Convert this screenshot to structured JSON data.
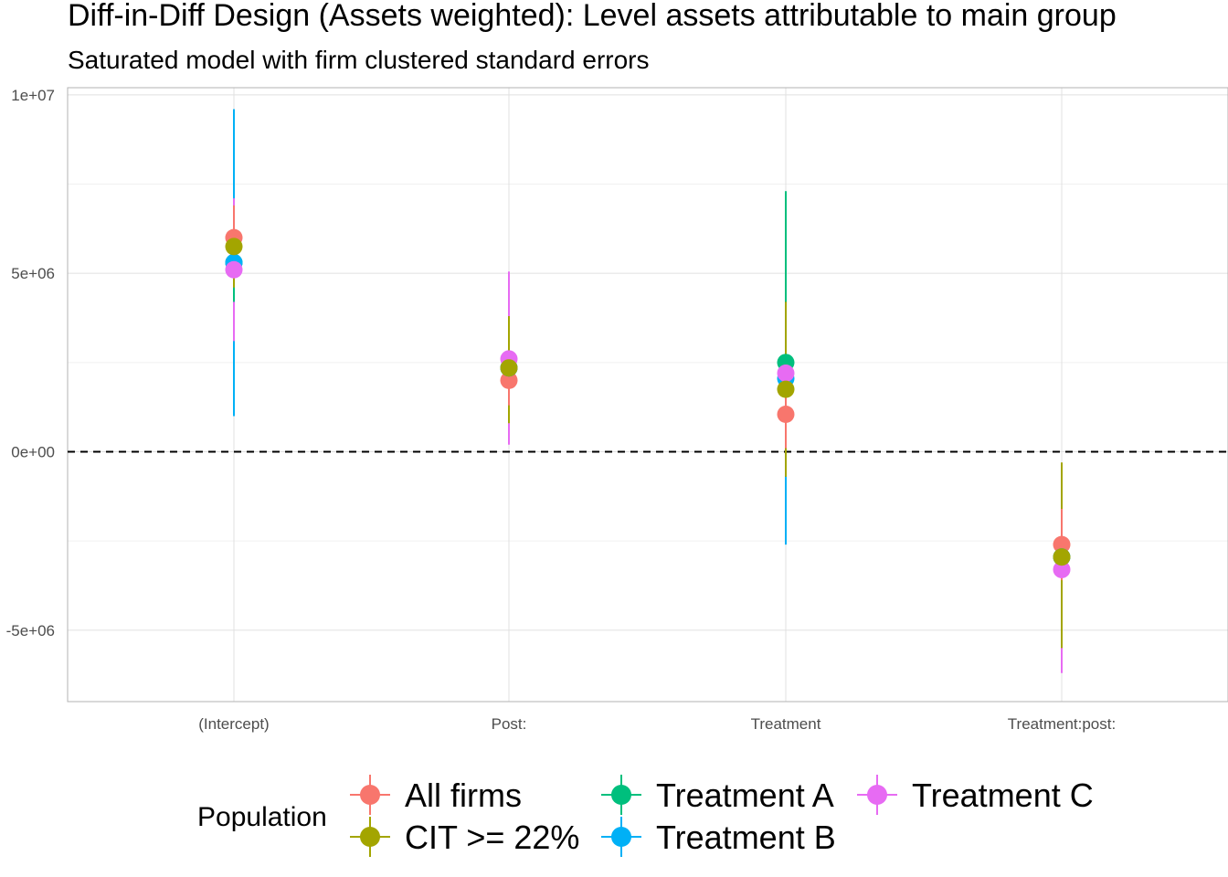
{
  "chart_data": {
    "type": "scatter",
    "title": "Diff-in-Diff Design (Assets weighted): Level assets attributable to main group",
    "subtitle": "Saturated model with firm clustered standard errors",
    "categories": [
      "(Intercept)",
      "Post:",
      "Treatment",
      "Treatment:post:"
    ],
    "ylim": [
      -7000000,
      10200000
    ],
    "yticks": [
      10000000,
      5000000,
      0,
      -5000000
    ],
    "ytick_labels": [
      "1e+07",
      "5e+06",
      "0e+00",
      "-5e+06"
    ],
    "reference_line": 0,
    "grid": true,
    "legend": {
      "title": "Population",
      "placement": "bottom"
    },
    "series": [
      {
        "name": "All firms",
        "color": "#F8766D",
        "values": [
          6000000,
          2000000,
          1050000,
          -2600000
        ],
        "lower": [
          5100000,
          1300000,
          100000,
          -3600000
        ],
        "upper": [
          6900000,
          2700000,
          2000000,
          -1600000
        ]
      },
      {
        "name": "CIT >= 22%",
        "color": "#A3A500",
        "values": [
          5750000,
          2350000,
          1750000,
          -2950000
        ],
        "lower": [
          4600000,
          800000,
          -700000,
          -5500000
        ],
        "upper": [
          6900000,
          3800000,
          4200000,
          -300000
        ]
      },
      {
        "name": "Treatment A",
        "color": "#00BF7D",
        "values": [
          5300000,
          2350000,
          2500000,
          -2950000
        ],
        "lower": [
          4200000,
          1500000,
          -300000,
          -4100000
        ],
        "upper": [
          6400000,
          3200000,
          7300000,
          -1800000
        ]
      },
      {
        "name": "Treatment B",
        "color": "#00B0F6",
        "values": [
          5300000,
          2350000,
          2050000,
          -2950000
        ],
        "lower": [
          1000000,
          1500000,
          -2600000,
          -4100000
        ],
        "upper": [
          9600000,
          3200000,
          4900000,
          -1800000
        ]
      },
      {
        "name": "Treatment C",
        "color": "#E76BF3",
        "values": [
          5100000,
          2600000,
          2200000,
          -3300000
        ],
        "lower": [
          3100000,
          200000,
          -400000,
          -6200000
        ],
        "upper": [
          7100000,
          5050000,
          4800000,
          -400000
        ]
      }
    ]
  }
}
